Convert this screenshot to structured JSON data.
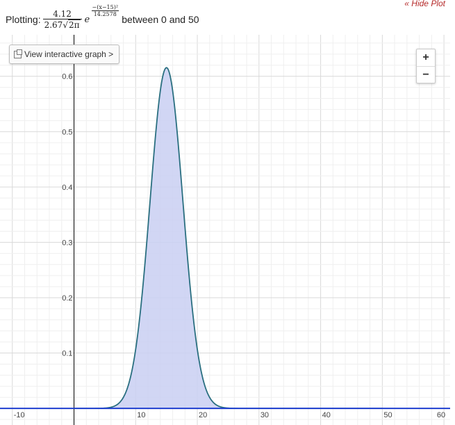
{
  "header": {
    "hide_plot": "« Hide Plot",
    "plotting_label": "Plotting:",
    "numerator": "4.12",
    "den_coef": "2.67",
    "den_radicand": "2π",
    "exp_num": "−(x−15)²",
    "exp_den": "14.2578",
    "e_base": "e",
    "range_text": "between 0 and 50"
  },
  "controls": {
    "interactive_button": "View interactive graph >",
    "zoom_in": "+",
    "zoom_out": "−"
  },
  "chart_data": {
    "type": "area",
    "function": "4.12/(2.67*sqrt(2*pi)) * exp(-(x-15)^2/14.2578)",
    "x_range": [
      0,
      50
    ],
    "xlim": [
      -12,
      61
    ],
    "ylim": [
      -0.03,
      0.675
    ],
    "x_ticks": [
      -10,
      10,
      20,
      30,
      40,
      50,
      60
    ],
    "y_ticks": [
      0.1,
      0.2,
      0.3,
      0.4,
      0.5,
      0.6
    ],
    "x_tick_labels": [
      "-10",
      "10",
      "20",
      "30",
      "40",
      "50",
      "60"
    ],
    "y_tick_labels": [
      "0.1",
      "0.2",
      "0.3",
      "0.4",
      "0.5",
      "0.6"
    ],
    "grid": true,
    "colors": {
      "curve": "#2a6f80",
      "fill": "#c9cff2",
      "axis_line": "#1f3fd0",
      "grid": "#e6e6e6"
    }
  }
}
